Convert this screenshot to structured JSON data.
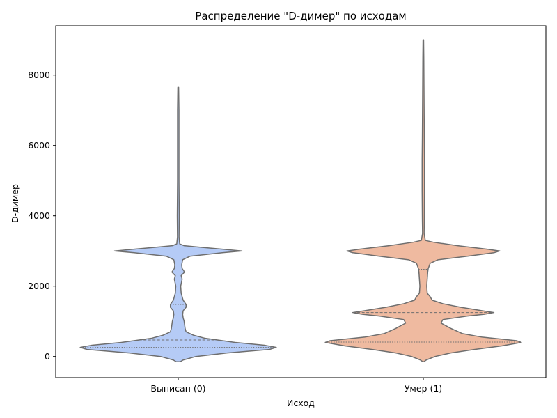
{
  "chart_data": {
    "type": "violin",
    "title": "Распределение \"D-димер\" по исходам",
    "xlabel": "Исход",
    "ylabel": "D-димер",
    "categories": [
      "Выписан (0)",
      "Умер (1)"
    ],
    "ylim": [
      -600,
      9400
    ],
    "yticks": [
      0,
      2000,
      4000,
      6000,
      8000
    ],
    "grid": false,
    "inner": "quartile",
    "colors": {
      "Выписан (0)": "#b5cbf6",
      "Умер (1)": "#efbaa0",
      "outline": "#6e6e6e",
      "axis": "#000000"
    },
    "violins": [
      {
        "category": "Выписан (0)",
        "min": -150,
        "max": 7650,
        "quartiles": [
          260,
          470,
          1480
        ],
        "half_width_profile": [
          [
            -150,
            0.02
          ],
          [
            -100,
            0.05
          ],
          [
            0,
            0.18
          ],
          [
            100,
            0.5
          ],
          [
            200,
            0.93
          ],
          [
            260,
            1.0
          ],
          [
            320,
            0.88
          ],
          [
            400,
            0.58
          ],
          [
            470,
            0.4
          ],
          [
            520,
            0.27
          ],
          [
            600,
            0.16
          ],
          [
            700,
            0.08
          ],
          [
            800,
            0.07
          ],
          [
            1000,
            0.06
          ],
          [
            1100,
            0.05
          ],
          [
            1200,
            0.045
          ],
          [
            1300,
            0.05
          ],
          [
            1400,
            0.08
          ],
          [
            1480,
            0.08
          ],
          [
            1600,
            0.05
          ],
          [
            1800,
            0.03
          ],
          [
            2000,
            0.025
          ],
          [
            2200,
            0.04
          ],
          [
            2300,
            0.03
          ],
          [
            2400,
            0.065
          ],
          [
            2500,
            0.04
          ],
          [
            2600,
            0.035
          ],
          [
            2750,
            0.045
          ],
          [
            2850,
            0.12
          ],
          [
            2950,
            0.45
          ],
          [
            3000,
            0.65
          ],
          [
            3050,
            0.45
          ],
          [
            3100,
            0.25
          ],
          [
            3150,
            0.06
          ],
          [
            3200,
            0.015
          ],
          [
            3400,
            0.008
          ],
          [
            4000,
            0.01
          ],
          [
            5000,
            0.007
          ],
          [
            6000,
            0.007
          ],
          [
            7000,
            0.007
          ],
          [
            7650,
            0.004
          ]
        ]
      },
      {
        "category": "Умер (1)",
        "min": -150,
        "max": 9000,
        "quartiles": [
          410,
          1250,
          2480
        ],
        "half_width_profile": [
          [
            -150,
            0.005
          ],
          [
            -100,
            0.03
          ],
          [
            0,
            0.12
          ],
          [
            100,
            0.28
          ],
          [
            200,
            0.52
          ],
          [
            300,
            0.8
          ],
          [
            400,
            1.0
          ],
          [
            450,
            0.95
          ],
          [
            550,
            0.6
          ],
          [
            650,
            0.4
          ],
          [
            800,
            0.28
          ],
          [
            950,
            0.18
          ],
          [
            1050,
            0.2
          ],
          [
            1150,
            0.45
          ],
          [
            1200,
            0.62
          ],
          [
            1250,
            0.72
          ],
          [
            1300,
            0.6
          ],
          [
            1400,
            0.38
          ],
          [
            1500,
            0.2
          ],
          [
            1600,
            0.09
          ],
          [
            1700,
            0.07
          ],
          [
            1800,
            0.04
          ],
          [
            2000,
            0.035
          ],
          [
            2200,
            0.04
          ],
          [
            2400,
            0.045
          ],
          [
            2500,
            0.05
          ],
          [
            2650,
            0.07
          ],
          [
            2750,
            0.15
          ],
          [
            2850,
            0.45
          ],
          [
            2950,
            0.72
          ],
          [
            3000,
            0.78
          ],
          [
            3050,
            0.65
          ],
          [
            3150,
            0.35
          ],
          [
            3250,
            0.1
          ],
          [
            3300,
            0.02
          ],
          [
            3500,
            0.008
          ],
          [
            3900,
            0.01
          ],
          [
            4700,
            0.012
          ],
          [
            5600,
            0.012
          ],
          [
            6200,
            0.01
          ],
          [
            7500,
            0.007
          ],
          [
            8500,
            0.005
          ],
          [
            9000,
            0.003
          ]
        ]
      }
    ]
  }
}
